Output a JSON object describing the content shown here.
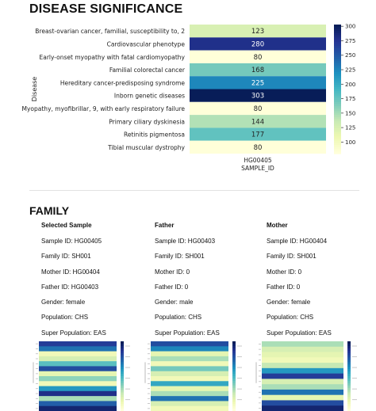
{
  "sections": {
    "disease_significance_title": "DISEASE SIGNIFICANCE",
    "family_title": "FAMILY"
  },
  "colors": {
    "low": "#ffffd9",
    "mid": "#41b6c4",
    "high": "#081d58"
  },
  "chart_data": {
    "type": "heatmap",
    "ylabel": "Disease",
    "xlabel": "SAMPLE_ID",
    "x_categories": [
      "HG00405"
    ],
    "y_categories": [
      "Breast-ovarian cancer, familial, susceptibility to, 2",
      "Cardiovascular phenotype",
      "Early-onset myopathy with fatal cardiomyopathy",
      "Familial colorectal cancer",
      "Hereditary cancer-predisposing syndrome",
      "Inborn genetic diseases",
      "Myopathy, myofibrillar, 9, with early respiratory failure",
      "Primary ciliary dyskinesia",
      "Retinitis pigmentosa",
      "Tibial muscular dystrophy"
    ],
    "values": [
      123,
      280,
      80,
      168,
      225,
      303,
      80,
      144,
      177,
      80
    ],
    "colorbar": {
      "min": 80,
      "max": 303,
      "ticks": [
        100,
        125,
        150,
        175,
        200,
        225,
        250,
        275,
        300
      ]
    }
  },
  "family": {
    "columns": [
      {
        "header": "Selected Sample",
        "rows": [
          "Sample ID: HG00405",
          "Family ID: SH001",
          "Mother ID: HG00404",
          "Father ID: HG00403",
          "Gender: female",
          "Population: CHS",
          "Super Population: EAS"
        ]
      },
      {
        "header": "Father",
        "rows": [
          "Sample ID: HG00403",
          "Family ID: SH001",
          "Mother ID: 0",
          "Father ID: 0",
          "Gender: male",
          "Population: CHS",
          "Super Population: EAS"
        ]
      },
      {
        "header": "Mother",
        "rows": [
          "Sample ID: HG00404",
          "Family ID: SH001",
          "Mother ID: 0",
          "Father ID: 0",
          "Gender: female",
          "Population: CHS",
          "Super Population: EAS"
        ]
      }
    ]
  },
  "thumbnails": [
    {
      "values": [
        0.85,
        0.7,
        0.1,
        0.2,
        0.45,
        0.8,
        0.15,
        0.35,
        0.1,
        0.6,
        0.9,
        0.3,
        0.75,
        0.95
      ]
    },
    {
      "values": [
        0.8,
        0.65,
        0.15,
        0.3,
        0.1,
        0.4,
        0.2,
        0.1,
        0.55,
        0.15,
        0.3,
        0.7,
        0.2,
        0.1
      ]
    },
    {
      "values": [
        0.3,
        0.2,
        0.15,
        0.1,
        0.25,
        0.6,
        0.85,
        0.2,
        0.3,
        0.7,
        0.15,
        0.8,
        0.95
      ]
    }
  ]
}
